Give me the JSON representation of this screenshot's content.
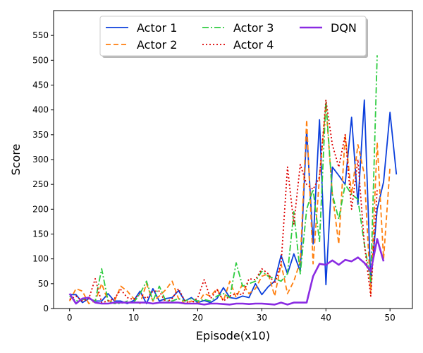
{
  "chart_data": {
    "type": "line",
    "xlabel": "Episode(x10)",
    "ylabel": "Score",
    "xlim": [
      -2.5,
      53.5
    ],
    "ylim": [
      0,
      600
    ],
    "x_ticks": [
      0,
      10,
      20,
      30,
      40,
      50
    ],
    "y_ticks": [
      0,
      50,
      100,
      150,
      200,
      250,
      300,
      350,
      400,
      450,
      500,
      550
    ],
    "grid": false,
    "legend_position": "top-center",
    "legend_columns": 3,
    "series": [
      {
        "name": "Actor 1",
        "color": "#0b3fdc",
        "style": "solid",
        "x": [
          0,
          1,
          2,
          3,
          4,
          5,
          6,
          7,
          8,
          9,
          10,
          11,
          12,
          13,
          14,
          15,
          16,
          17,
          18,
          19,
          20,
          21,
          22,
          23,
          24,
          25,
          26,
          27,
          28,
          29,
          30,
          31,
          32,
          33,
          34,
          35,
          36,
          37,
          38,
          39,
          40,
          41,
          42,
          43,
          44,
          45,
          46,
          47,
          48,
          49,
          50,
          51
        ],
        "values": [
          28,
          28,
          12,
          20,
          15,
          15,
          30,
          15,
          15,
          10,
          16,
          35,
          10,
          40,
          15,
          20,
          22,
          36,
          15,
          22,
          12,
          16,
          12,
          20,
          42,
          22,
          20,
          25,
          22,
          50,
          28,
          44,
          55,
          107,
          70,
          110,
          75,
          360,
          130,
          380,
          48,
          285,
          268,
          250,
          385,
          210,
          420,
          50,
          200,
          255,
          395,
          270
        ]
      },
      {
        "name": "Actor 2",
        "color": "#ff7f0e",
        "style": "dashed",
        "x": [
          0,
          1,
          2,
          3,
          4,
          5,
          6,
          7,
          8,
          9,
          10,
          11,
          12,
          13,
          14,
          15,
          16,
          17,
          18,
          19,
          20,
          21,
          22,
          23,
          24,
          25,
          26,
          27,
          28,
          29,
          30,
          31,
          32,
          33,
          34,
          35,
          36,
          37,
          38,
          39,
          40,
          41,
          42,
          43,
          44,
          45,
          46,
          47,
          48,
          49,
          50
        ],
        "values": [
          15,
          40,
          35,
          10,
          15,
          50,
          15,
          15,
          45,
          35,
          20,
          10,
          50,
          15,
          25,
          38,
          55,
          20,
          10,
          15,
          10,
          30,
          25,
          40,
          15,
          55,
          22,
          50,
          30,
          40,
          65,
          70,
          25,
          90,
          30,
          55,
          95,
          380,
          90,
          265,
          410,
          230,
          130,
          350,
          230,
          330,
          270,
          30,
          335,
          100,
          285
        ]
      },
      {
        "name": "Actor 3",
        "color": "#2ecc40",
        "style": "dashdot",
        "x": [
          0,
          1,
          2,
          3,
          4,
          5,
          6,
          7,
          8,
          9,
          10,
          11,
          12,
          13,
          14,
          15,
          16,
          17,
          18,
          19,
          20,
          21,
          22,
          23,
          24,
          25,
          26,
          27,
          28,
          29,
          30,
          31,
          32,
          33,
          34,
          35,
          36,
          37,
          38,
          39,
          40,
          41,
          42,
          43,
          44,
          45,
          46,
          47,
          48
        ],
        "values": [
          25,
          15,
          18,
          20,
          15,
          80,
          15,
          10,
          10,
          15,
          12,
          30,
          55,
          15,
          45,
          15,
          15,
          20,
          15,
          20,
          15,
          18,
          15,
          25,
          30,
          22,
          92,
          45,
          50,
          55,
          75,
          65,
          60,
          55,
          70,
          195,
          70,
          200,
          240,
          135,
          420,
          230,
          180,
          250,
          230,
          220,
          130,
          55,
          510
        ]
      },
      {
        "name": "Actor 4",
        "color": "#dd0000",
        "style": "dotted",
        "x": [
          0,
          1,
          2,
          3,
          4,
          5,
          6,
          7,
          8,
          9,
          10,
          11,
          12,
          13,
          14,
          15,
          16,
          17,
          18,
          19,
          20,
          21,
          22,
          23,
          24,
          25,
          26,
          27,
          28,
          29,
          30,
          31,
          32,
          33,
          34,
          35,
          36,
          37,
          38,
          39,
          40,
          41,
          42,
          43,
          44,
          45,
          46,
          47,
          48
        ],
        "values": [
          18,
          25,
          15,
          20,
          60,
          12,
          15,
          20,
          38,
          22,
          18,
          30,
          20,
          35,
          35,
          12,
          20,
          40,
          15,
          10,
          22,
          58,
          20,
          38,
          15,
          25,
          30,
          28,
          60,
          58,
          80,
          70,
          50,
          90,
          285,
          170,
          290,
          250,
          240,
          265,
          420,
          330,
          285,
          350,
          200,
          300,
          130,
          25,
          240
        ]
      },
      {
        "name": "DQN",
        "color": "#8a2be2",
        "style": "solid-thick",
        "x": [
          0,
          1,
          2,
          3,
          4,
          5,
          6,
          7,
          8,
          9,
          10,
          11,
          12,
          13,
          14,
          15,
          16,
          17,
          18,
          19,
          20,
          21,
          22,
          23,
          24,
          25,
          26,
          27,
          28,
          29,
          30,
          31,
          32,
          33,
          34,
          35,
          36,
          37,
          38,
          39,
          40,
          41,
          42,
          43,
          44,
          45,
          46,
          47,
          48,
          49
        ],
        "values": [
          30,
          10,
          20,
          22,
          12,
          10,
          10,
          12,
          12,
          12,
          12,
          12,
          12,
          10,
          12,
          12,
          12,
          12,
          10,
          10,
          10,
          8,
          10,
          10,
          9,
          8,
          10,
          10,
          9,
          10,
          10,
          9,
          8,
          12,
          8,
          12,
          12,
          12,
          65,
          90,
          88,
          97,
          88,
          98,
          95,
          103,
          92,
          75,
          140,
          95
        ]
      }
    ]
  }
}
